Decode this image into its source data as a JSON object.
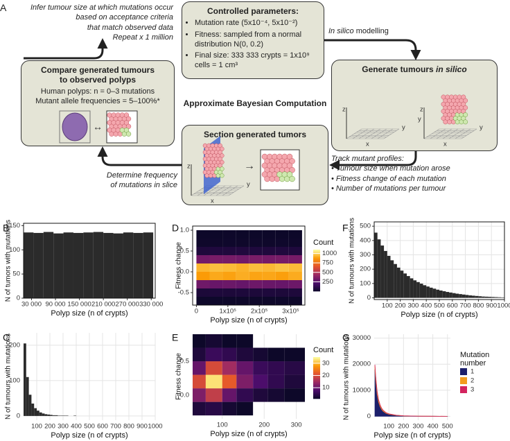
{
  "diagram": {
    "panel_label": "A",
    "infer_note": [
      "Infer tumour size at which mutations occur",
      "based on acceptance criteria",
      "that match observed data",
      "Repeat x 1 million"
    ],
    "controlled": {
      "title": "Controlled parameters:",
      "bullets": [
        "Mutation rate (5x10⁻⁴, 5x10⁻²)",
        "Fitness: sampled from a normal distribution N(0, 0.2)",
        "Final size: 333 333 crypts = 1x10⁹ cells = 1 cm³"
      ]
    },
    "in_silico_note": {
      "italic": "In silico",
      "text": "modelling"
    },
    "generate": {
      "title": "Generate tumours",
      "title_italic": "in silico"
    },
    "center_label": "Approximate Bayesian Computation",
    "compare": {
      "title": "Compare generated tumours to observed polyps",
      "lines": [
        "Human polyps: n = 0–3 mutations",
        "Mutant allele frequencies = 5–100%*"
      ]
    },
    "section": {
      "title": "Section generated tumors"
    },
    "track": {
      "title": "Track mutant profiles:",
      "bullets": [
        "Tumour size when mutation arose",
        "Fitness change of each mutation",
        "Number of mutations per tumour"
      ]
    },
    "determine_note": [
      "Determine frequency",
      "of mutations in slice"
    ],
    "axis_letters": {
      "x": "x",
      "y": "y",
      "z": "z"
    }
  },
  "chart_data": [
    {
      "type": "histogram",
      "panel_label": "B",
      "xlabel": "Polyp size (n of crypts)",
      "ylabel": "N of tumors with mutations",
      "color": "#2b2b2b",
      "frame": true,
      "grid": false,
      "bins": [
        10000,
        35000,
        60000,
        85000,
        110000,
        135000,
        160000,
        185000,
        210000,
        235000,
        260000,
        285000,
        310000,
        335000
      ],
      "values": [
        136,
        135,
        137,
        134,
        136,
        135,
        136,
        137,
        135,
        134,
        136,
        135,
        136
      ],
      "xlim": [
        10000,
        340000
      ],
      "ylim": [
        0,
        155
      ],
      "xticks": [
        {
          "value": 30000,
          "label": "30 000"
        },
        {
          "value": 90000,
          "label": "90 000"
        },
        {
          "value": 150000,
          "label": "150 000"
        },
        {
          "value": 210000,
          "label": "210 000"
        },
        {
          "value": 270000,
          "label": "270 000"
        },
        {
          "value": 330000,
          "label": "330 000"
        }
      ],
      "yticks": [
        0,
        50,
        100,
        150
      ]
    },
    {
      "type": "heatmap",
      "panel_label": "D",
      "xlabel": "Polyp size (n of crypts)",
      "ylabel": "Fitness change",
      "frame": true,
      "grid": false,
      "legend_title": "Count",
      "colormap": [
        "#0d0829",
        "#4a0c6b",
        "#9c2964",
        "#e4542e",
        "#fb9b06",
        "#fcffa4"
      ],
      "clim": [
        1,
        1100
      ],
      "color_ticks": [
        250,
        500,
        750,
        1000
      ],
      "xbins": [
        0,
        42000,
        84000,
        126000,
        168000,
        210000,
        252000,
        294000,
        336000
      ],
      "ybins": [
        -0.8,
        -0.6,
        -0.4,
        -0.2,
        0,
        0.2,
        0.4,
        0.6,
        0.8,
        1.0
      ],
      "values": [
        [
          4,
          6,
          5,
          3,
          5,
          4,
          6,
          5
        ],
        [
          55,
          62,
          58,
          60,
          57,
          63,
          59,
          61
        ],
        [
          320,
          300,
          310,
          295,
          315,
          305,
          298,
          312
        ],
        [
          880,
          910,
          895,
          920,
          900,
          905,
          890,
          915
        ],
        [
          940,
          960,
          950,
          930,
          955,
          945,
          965,
          950
        ],
        [
          330,
          345,
          340,
          325,
          350,
          335,
          342,
          338
        ],
        [
          65,
          70,
          68,
          72,
          66,
          69,
          71,
          67
        ],
        [
          9,
          8,
          10,
          7,
          9,
          8,
          10,
          9
        ],
        [
          2,
          1,
          3,
          2,
          1,
          2,
          2,
          1
        ]
      ],
      "xlim": [
        -12000,
        345000
      ],
      "ylim": [
        -0.8,
        1.1
      ],
      "xticks": [
        0,
        {
          "value": 100000,
          "label": "1x10⁵"
        },
        {
          "value": 200000,
          "label": "2x10⁵"
        },
        {
          "value": 300000,
          "label": "3x10⁵"
        }
      ],
      "yticks": [
        -0.5,
        {
          "value": 0,
          "label": "0.0"
        },
        0.5,
        {
          "value": 1,
          "label": "1.0"
        }
      ]
    },
    {
      "type": "histogram",
      "panel_label": "F",
      "xlabel": "Polyp size (n of crypts)",
      "ylabel": "N of tumours with mutations",
      "color": "#2b2b2b",
      "frame": true,
      "grid": true,
      "bins": [
        0,
        25,
        50,
        75,
        100,
        125,
        150,
        175,
        200,
        225,
        250,
        275,
        300,
        325,
        350,
        375,
        400,
        425,
        450,
        475,
        500,
        525,
        550,
        575,
        600,
        625,
        650,
        675,
        700,
        725,
        750,
        775,
        800,
        825,
        850,
        875,
        900,
        925,
        950,
        975,
        1000
      ],
      "values": [
        455,
        408,
        365,
        327,
        293,
        262,
        236,
        211,
        190,
        170,
        152,
        136,
        122,
        110,
        99,
        88,
        79,
        71,
        64,
        57,
        51,
        46,
        41,
        37,
        33,
        29,
        26,
        23,
        20,
        17,
        15,
        13,
        11,
        9,
        8,
        7,
        6,
        5,
        4,
        3
      ],
      "xlim": [
        0,
        1000
      ],
      "ylim": [
        -12,
        530
      ],
      "xticks": [
        100,
        200,
        300,
        400,
        500,
        600,
        700,
        800,
        900,
        1000
      ],
      "yticks": [
        0,
        100,
        200,
        300,
        400,
        500
      ]
    },
    {
      "type": "histogram",
      "panel_label": "C",
      "xlabel": "Polyp size (n of crypts)",
      "ylabel": "N of tumours with mutations",
      "color": "#2b2b2b",
      "frame": false,
      "grid": true,
      "bins": [
        0,
        20,
        40,
        60,
        80,
        100,
        120,
        140,
        160,
        180,
        200,
        220,
        240,
        260,
        280,
        300,
        320,
        340,
        360,
        380,
        400,
        420,
        440,
        460,
        480,
        500,
        520,
        540,
        560,
        580,
        600
      ],
      "values": [
        205,
        110,
        60,
        35,
        22,
        15,
        10,
        7,
        5,
        4,
        3,
        2,
        2,
        1,
        1,
        1,
        1,
        0,
        0,
        1,
        0,
        0,
        0,
        0,
        0,
        0,
        0,
        0,
        0,
        0
      ],
      "xlim": [
        0,
        1000
      ],
      "ylim": [
        -12,
        235
      ],
      "xticks": [
        100,
        200,
        300,
        400,
        500,
        600,
        700,
        800,
        900,
        1000
      ],
      "yticks": [
        0,
        100,
        200
      ]
    },
    {
      "type": "heatmap",
      "panel_label": "E",
      "xlabel": "Polyp size (n of crypts)",
      "ylabel": "Fitness change",
      "frame": false,
      "grid": true,
      "xscale": "sqrt",
      "legend_title": "Count",
      "colormap": [
        "#0d0829",
        "#4a0c6b",
        "#9c2964",
        "#e4542e",
        "#fb9b06",
        "#fcffa4"
      ],
      "clim": [
        1,
        35
      ],
      "color_ticks": [
        10,
        20,
        30
      ],
      "xbins": [
        50,
        70,
        100,
        130,
        170,
        210,
        260,
        330
      ],
      "ybins": [
        -0.3,
        -0.1,
        0.1,
        0.3,
        0.5,
        0.7,
        0.9
      ],
      "values": [
        [
          3,
          4,
          2,
          1,
          0,
          0,
          0
        ],
        [
          12,
          18,
          10,
          5,
          3,
          2,
          1
        ],
        [
          20,
          33,
          22,
          12,
          8,
          5,
          3
        ],
        [
          10,
          20,
          15,
          10,
          6,
          5,
          4
        ],
        [
          3,
          6,
          5,
          3,
          2,
          1,
          1
        ],
        [
          1,
          2,
          1,
          1,
          0,
          0,
          0
        ]
      ],
      "xlim": [
        50,
        330
      ],
      "ylim": [
        -0.35,
        0.9
      ],
      "xticks": [
        100,
        200,
        300
      ],
      "yticks": [
        {
          "value": 0,
          "label": "0.0"
        },
        0.5
      ]
    },
    {
      "type": "area",
      "panel_label": "G",
      "xlabel": "Polyp size (n of crypts)",
      "ylabel": "N of tumours with mutations",
      "frame": false,
      "grid": true,
      "legend_title": [
        "Mutation",
        "number"
      ],
      "x": [
        5,
        10,
        20,
        30,
        40,
        50,
        60,
        80,
        100,
        150,
        200,
        300,
        400,
        500
      ],
      "series": [
        {
          "name": "1",
          "color": "#1c1f6b",
          "values": [
            18000,
            14000,
            8500,
            5500,
            3800,
            2700,
            2000,
            1200,
            800,
            350,
            150,
            40,
            10,
            2
          ]
        },
        {
          "name": "2",
          "color": "#f39c1f",
          "values": [
            1500,
            1300,
            1000,
            750,
            550,
            420,
            330,
            200,
            130,
            60,
            25,
            8,
            2,
            0
          ]
        },
        {
          "name": "3",
          "color": "#d3245f",
          "values": [
            300,
            250,
            180,
            130,
            100,
            80,
            60,
            40,
            25,
            10,
            5,
            1,
            0,
            0
          ]
        }
      ],
      "xlim": [
        0,
        520
      ],
      "ylim": [
        -1500,
        31500
      ],
      "xticks": [
        100,
        200,
        300,
        400,
        500
      ],
      "yticks": [
        0,
        10000,
        20000,
        30000
      ]
    }
  ]
}
